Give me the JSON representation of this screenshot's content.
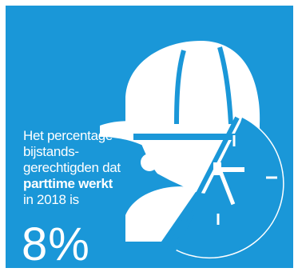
{
  "infographic": {
    "background_color": "#1a97d8",
    "icon": "worker-helmet-clock-icon",
    "text_lines": [
      "Het percentage",
      "bijstands-",
      "gerechtigden dat",
      "parttime werkt",
      "in 2018 is"
    ],
    "value": "8%"
  }
}
